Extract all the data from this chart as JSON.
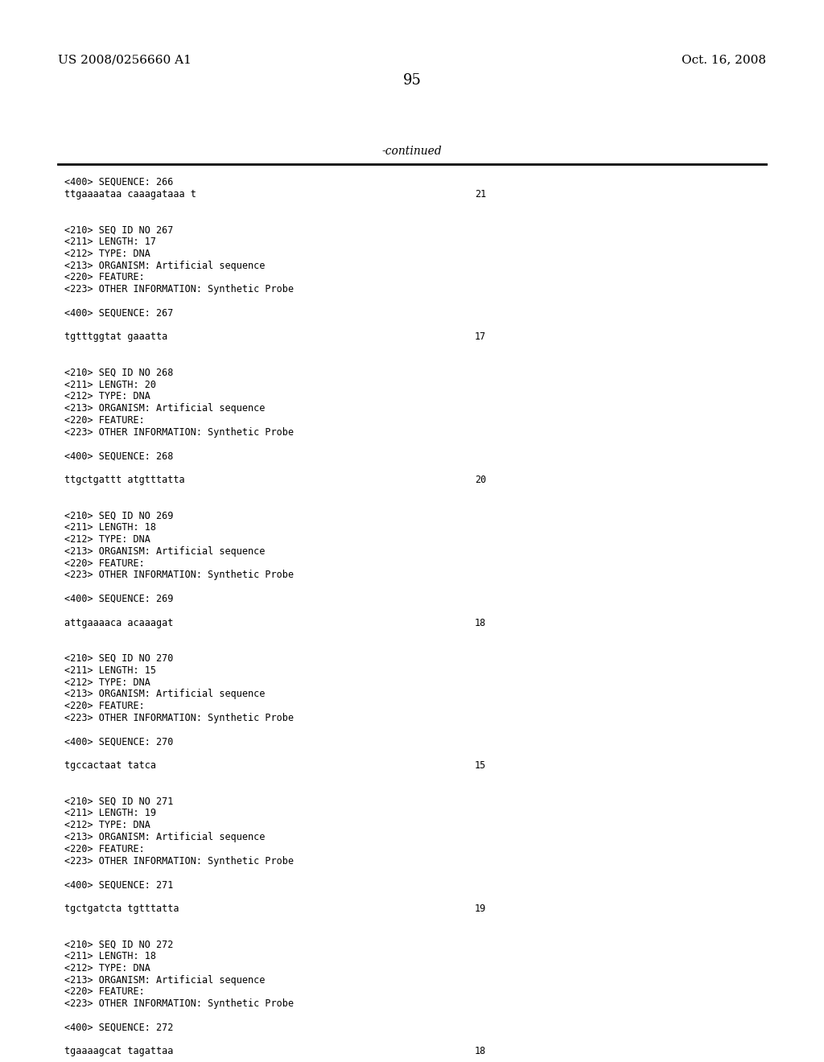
{
  "header_left": "US 2008/0256660 A1",
  "header_right": "Oct. 16, 2008",
  "page_number": "95",
  "continued_label": "-continued",
  "background_color": "#ffffff",
  "text_color": "#000000",
  "font_size_header": 11,
  "font_size_mono": 8.5,
  "font_size_page": 13,
  "content_lines": [
    {
      "text": "<400> SEQUENCE: 266",
      "num": null
    },
    {
      "text": "ttgaaaataa caaagataaa t",
      "num": "21"
    },
    {
      "text": "",
      "num": null
    },
    {
      "text": "",
      "num": null
    },
    {
      "text": "<210> SEQ ID NO 267",
      "num": null
    },
    {
      "text": "<211> LENGTH: 17",
      "num": null
    },
    {
      "text": "<212> TYPE: DNA",
      "num": null
    },
    {
      "text": "<213> ORGANISM: Artificial sequence",
      "num": null
    },
    {
      "text": "<220> FEATURE:",
      "num": null
    },
    {
      "text": "<223> OTHER INFORMATION: Synthetic Probe",
      "num": null
    },
    {
      "text": "",
      "num": null
    },
    {
      "text": "<400> SEQUENCE: 267",
      "num": null
    },
    {
      "text": "",
      "num": null
    },
    {
      "text": "tgtttggtat gaaatta",
      "num": "17"
    },
    {
      "text": "",
      "num": null
    },
    {
      "text": "",
      "num": null
    },
    {
      "text": "<210> SEQ ID NO 268",
      "num": null
    },
    {
      "text": "<211> LENGTH: 20",
      "num": null
    },
    {
      "text": "<212> TYPE: DNA",
      "num": null
    },
    {
      "text": "<213> ORGANISM: Artificial sequence",
      "num": null
    },
    {
      "text": "<220> FEATURE:",
      "num": null
    },
    {
      "text": "<223> OTHER INFORMATION: Synthetic Probe",
      "num": null
    },
    {
      "text": "",
      "num": null
    },
    {
      "text": "<400> SEQUENCE: 268",
      "num": null
    },
    {
      "text": "",
      "num": null
    },
    {
      "text": "ttgctgattt atgtttatta",
      "num": "20"
    },
    {
      "text": "",
      "num": null
    },
    {
      "text": "",
      "num": null
    },
    {
      "text": "<210> SEQ ID NO 269",
      "num": null
    },
    {
      "text": "<211> LENGTH: 18",
      "num": null
    },
    {
      "text": "<212> TYPE: DNA",
      "num": null
    },
    {
      "text": "<213> ORGANISM: Artificial sequence",
      "num": null
    },
    {
      "text": "<220> FEATURE:",
      "num": null
    },
    {
      "text": "<223> OTHER INFORMATION: Synthetic Probe",
      "num": null
    },
    {
      "text": "",
      "num": null
    },
    {
      "text": "<400> SEQUENCE: 269",
      "num": null
    },
    {
      "text": "",
      "num": null
    },
    {
      "text": "attgaaaaca acaaagat",
      "num": "18"
    },
    {
      "text": "",
      "num": null
    },
    {
      "text": "",
      "num": null
    },
    {
      "text": "<210> SEQ ID NO 270",
      "num": null
    },
    {
      "text": "<211> LENGTH: 15",
      "num": null
    },
    {
      "text": "<212> TYPE: DNA",
      "num": null
    },
    {
      "text": "<213> ORGANISM: Artificial sequence",
      "num": null
    },
    {
      "text": "<220> FEATURE:",
      "num": null
    },
    {
      "text": "<223> OTHER INFORMATION: Synthetic Probe",
      "num": null
    },
    {
      "text": "",
      "num": null
    },
    {
      "text": "<400> SEQUENCE: 270",
      "num": null
    },
    {
      "text": "",
      "num": null
    },
    {
      "text": "tgccactaat tatca",
      "num": "15"
    },
    {
      "text": "",
      "num": null
    },
    {
      "text": "",
      "num": null
    },
    {
      "text": "<210> SEQ ID NO 271",
      "num": null
    },
    {
      "text": "<211> LENGTH: 19",
      "num": null
    },
    {
      "text": "<212> TYPE: DNA",
      "num": null
    },
    {
      "text": "<213> ORGANISM: Artificial sequence",
      "num": null
    },
    {
      "text": "<220> FEATURE:",
      "num": null
    },
    {
      "text": "<223> OTHER INFORMATION: Synthetic Probe",
      "num": null
    },
    {
      "text": "",
      "num": null
    },
    {
      "text": "<400> SEQUENCE: 271",
      "num": null
    },
    {
      "text": "",
      "num": null
    },
    {
      "text": "tgctgatcta tgtttatta",
      "num": "19"
    },
    {
      "text": "",
      "num": null
    },
    {
      "text": "",
      "num": null
    },
    {
      "text": "<210> SEQ ID NO 272",
      "num": null
    },
    {
      "text": "<211> LENGTH: 18",
      "num": null
    },
    {
      "text": "<212> TYPE: DNA",
      "num": null
    },
    {
      "text": "<213> ORGANISM: Artificial sequence",
      "num": null
    },
    {
      "text": "<220> FEATURE:",
      "num": null
    },
    {
      "text": "<223> OTHER INFORMATION: Synthetic Probe",
      "num": null
    },
    {
      "text": "",
      "num": null
    },
    {
      "text": "<400> SEQUENCE: 272",
      "num": null
    },
    {
      "text": "",
      "num": null
    },
    {
      "text": "tgaaaagcat tagattaa",
      "num": "18"
    }
  ]
}
